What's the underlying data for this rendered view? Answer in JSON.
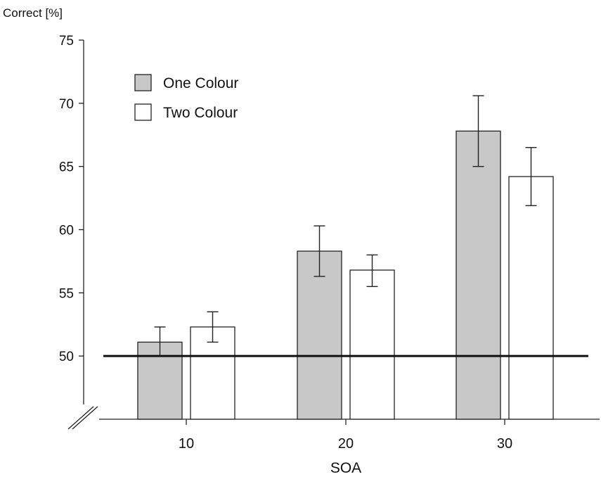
{
  "chart_data": {
    "type": "bar",
    "title": "",
    "ylabel": "Correct [%]",
    "xlabel": "SOA",
    "categories": [
      "10",
      "20",
      "30"
    ],
    "ylim": [
      45,
      75
    ],
    "yticks": [
      50,
      55,
      60,
      65,
      70,
      75
    ],
    "axis_break": true,
    "reference_line": 50,
    "legend_position": "top-left",
    "grid": false,
    "series": [
      {
        "name": "One Colour",
        "color": "#c8c8c8",
        "values": [
          51.1,
          58.3,
          67.8
        ],
        "error_low": [
          50.0,
          56.3,
          65.0
        ],
        "error_high": [
          52.3,
          60.3,
          70.6
        ]
      },
      {
        "name": "Two Colour",
        "color": "#ffffff",
        "values": [
          52.3,
          56.8,
          64.2
        ],
        "error_low": [
          51.1,
          55.5,
          61.9
        ],
        "error_high": [
          53.5,
          58.0,
          66.5
        ]
      }
    ]
  }
}
